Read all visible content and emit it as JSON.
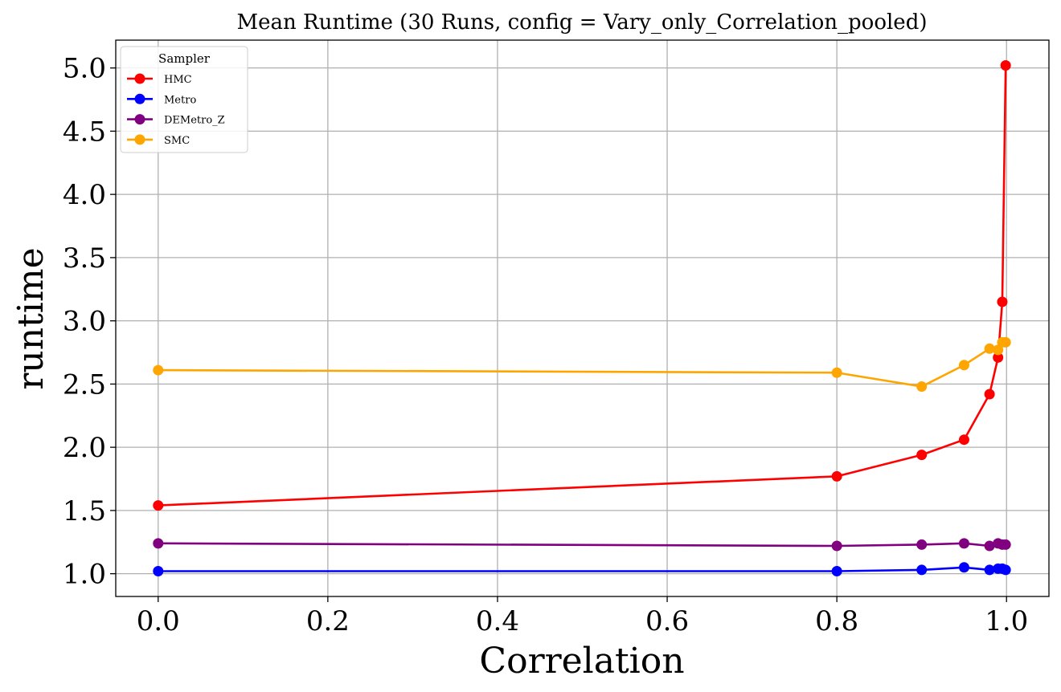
{
  "chart_data": {
    "type": "line",
    "title": "Mean Runtime (30 Runs, config = Vary_only_Correlation_pooled)",
    "xlabel": "Correlation",
    "ylabel": "runtime",
    "xlim": [
      -0.05,
      1.05
    ],
    "ylim": [
      0.82,
      5.22
    ],
    "xticks": [
      0.0,
      0.2,
      0.4,
      0.6,
      0.8,
      1.0
    ],
    "xtick_labels": [
      "0.0",
      "0.2",
      "0.4",
      "0.6",
      "0.8",
      "1.0"
    ],
    "yticks": [
      1.0,
      1.5,
      2.0,
      2.5,
      3.0,
      3.5,
      4.0,
      4.5,
      5.0
    ],
    "ytick_labels": [
      "1.0",
      "1.5",
      "2.0",
      "2.5",
      "3.0",
      "3.5",
      "4.0",
      "4.5",
      "5.0"
    ],
    "grid": true,
    "legend": {
      "title": "Sampler",
      "placement": "top-left"
    },
    "x": [
      0.0,
      0.8,
      0.9,
      0.95,
      0.98,
      0.99,
      0.995,
      0.999
    ],
    "series": [
      {
        "name": "HMC",
        "color": "#ff0000",
        "values": [
          1.54,
          1.77,
          1.94,
          2.06,
          2.42,
          2.71,
          3.15,
          5.02
        ]
      },
      {
        "name": "Metro",
        "color": "#0000ff",
        "values": [
          1.02,
          1.02,
          1.03,
          1.05,
          1.03,
          1.04,
          1.04,
          1.03
        ]
      },
      {
        "name": "DEMetro_Z",
        "color": "#800080",
        "values": [
          1.24,
          1.22,
          1.23,
          1.24,
          1.22,
          1.24,
          1.23,
          1.23
        ]
      },
      {
        "name": "SMC",
        "color": "#ffa500",
        "values": [
          2.61,
          2.59,
          2.48,
          2.65,
          2.78,
          2.77,
          2.83,
          2.83
        ]
      }
    ]
  }
}
